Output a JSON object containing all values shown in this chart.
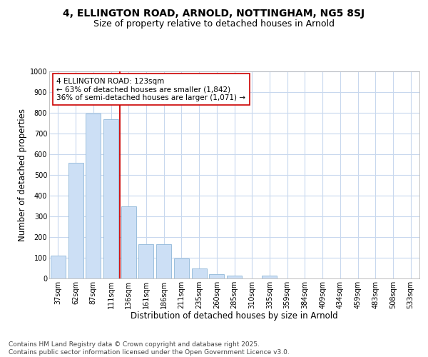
{
  "title_line1": "4, ELLINGTON ROAD, ARNOLD, NOTTINGHAM, NG5 8SJ",
  "title_line2": "Size of property relative to detached houses in Arnold",
  "categories": [
    "37sqm",
    "62sqm",
    "87sqm",
    "111sqm",
    "136sqm",
    "161sqm",
    "186sqm",
    "211sqm",
    "235sqm",
    "260sqm",
    "285sqm",
    "310sqm",
    "335sqm",
    "359sqm",
    "384sqm",
    "409sqm",
    "434sqm",
    "459sqm",
    "483sqm",
    "508sqm",
    "533sqm"
  ],
  "values": [
    110,
    560,
    795,
    770,
    350,
    165,
    165,
    95,
    50,
    20,
    15,
    0,
    15,
    0,
    0,
    0,
    0,
    0,
    0,
    0,
    0
  ],
  "bar_color": "#ccdff5",
  "bar_edge_color": "#9bbfdd",
  "background_color": "#ffffff",
  "plot_bg_color": "#ffffff",
  "grid_color": "#c8d8ee",
  "vline_color": "#cc0000",
  "vline_x": 3.5,
  "annotation_text": "4 ELLINGTON ROAD: 123sqm\n← 63% of detached houses are smaller (1,842)\n36% of semi-detached houses are larger (1,071) →",
  "annotation_box_facecolor": "#ffffff",
  "annotation_box_edgecolor": "#cc0000",
  "xlabel": "Distribution of detached houses by size in Arnold",
  "ylabel": "Number of detached properties",
  "ylim": [
    0,
    1000
  ],
  "yticks": [
    0,
    100,
    200,
    300,
    400,
    500,
    600,
    700,
    800,
    900,
    1000
  ],
  "footnote_line1": "Contains HM Land Registry data © Crown copyright and database right 2025.",
  "footnote_line2": "Contains public sector information licensed under the Open Government Licence v3.0.",
  "title_fontsize": 10,
  "subtitle_fontsize": 9,
  "axis_label_fontsize": 8.5,
  "tick_fontsize": 7,
  "annotation_fontsize": 7.5,
  "footnote_fontsize": 6.5
}
